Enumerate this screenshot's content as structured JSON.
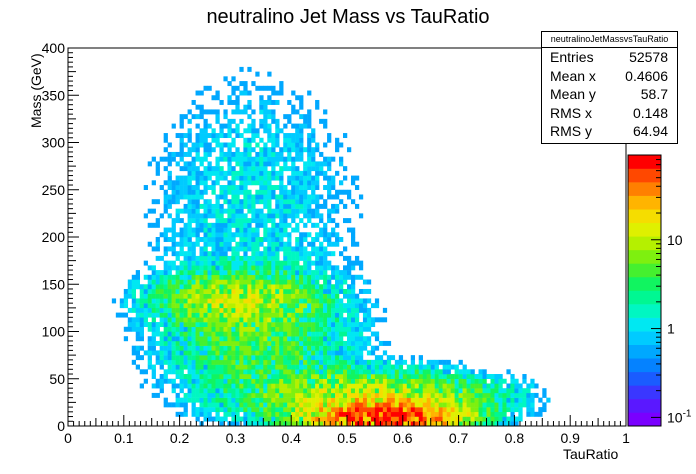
{
  "title": "neutralino Jet Mass vs TauRatio",
  "stats": {
    "name": "neutralinoJetMassvsTauRatio",
    "rows": [
      {
        "label": "Entries",
        "value": "52578"
      },
      {
        "label": "Mean x",
        "value": "0.4606"
      },
      {
        "label": "Mean y",
        "value": "58.7"
      },
      {
        "label": "RMS x",
        "value": "0.148"
      },
      {
        "label": "RMS y",
        "value": "64.94"
      }
    ]
  },
  "palette": [
    "#7a00ff",
    "#5a18ff",
    "#3a37ff",
    "#1a5cff",
    "#0582ff",
    "#00a8ff",
    "#00cbff",
    "#00e8f2",
    "#00f7c2",
    "#00f792",
    "#11f460",
    "#45f02f",
    "#7ef00f",
    "#b5f000",
    "#dff000",
    "#f5dd00",
    "#ffb400",
    "#ff8000",
    "#ff4800",
    "#ff0000"
  ],
  "chart_data": {
    "type": "heatmap",
    "title": "neutralino Jet Mass vs TauRatio",
    "xlabel": "TauRatio",
    "ylabel": "Mass (GeV)",
    "xlim": [
      0,
      1
    ],
    "ylim": [
      0,
      400
    ],
    "x_ticks": [
      "0",
      "0.1",
      "0.2",
      "0.3",
      "0.4",
      "0.5",
      "0.6",
      "0.7",
      "0.8",
      "0.9",
      "1"
    ],
    "y_ticks": [
      "0",
      "50",
      "100",
      "150",
      "200",
      "250",
      "300",
      "350",
      "400"
    ],
    "z_scale": "log",
    "z_ticks": [
      "10^-1",
      "1",
      "10"
    ],
    "entries": 52578,
    "mean_x": 0.4606,
    "mean_y": 58.7,
    "rms_x": 0.148,
    "rms_y": 64.94,
    "regions": [
      {
        "description": "dense core (highest counts)",
        "x_range": [
          0.45,
          0.72
        ],
        "y_range": [
          0,
          25
        ]
      },
      {
        "description": "secondary band (top mass)",
        "x_range": [
          0.15,
          0.45
        ],
        "y_range": [
          110,
          160
        ]
      },
      {
        "description": "sparse halo",
        "x_range": [
          0.05,
          0.85
        ],
        "y_range": [
          0,
          400
        ]
      }
    ]
  }
}
